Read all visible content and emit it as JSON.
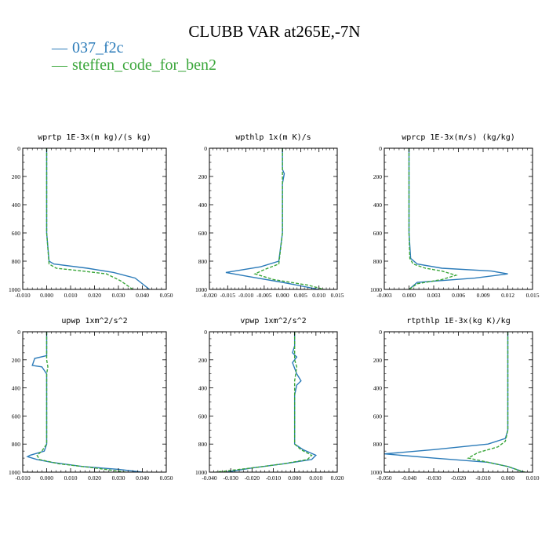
{
  "title": "CLUBB VAR at265E,-7N",
  "legend": [
    {
      "label": "037_f2c",
      "color": "#2b7bb9",
      "dash": "solid"
    },
    {
      "label": "steffen_code_for_ben2",
      "color": "#3aa63a",
      "dash": "dashed"
    }
  ],
  "chart_data": [
    {
      "type": "line",
      "title": "wprtp   1E-3x(m kg)/(s kg)",
      "xlim": [
        -0.01,
        0.05
      ],
      "xticks": [
        "-0.010",
        "0.000",
        "0.010",
        "0.020",
        "0.030",
        "0.040",
        "0.050"
      ],
      "ylim": [
        1000,
        0
      ],
      "yticks": [
        "0",
        "200",
        "400",
        "600",
        "800",
        "1000"
      ],
      "series": [
        {
          "name": "037_f2c",
          "x": [
            0.0,
            0.0,
            0.0,
            0.0,
            0.001,
            0.003,
            0.017,
            0.028,
            0.037,
            0.043
          ],
          "y": [
            0,
            200,
            400,
            600,
            800,
            820,
            850,
            880,
            920,
            1000
          ]
        },
        {
          "name": "steffen_code_for_ben2",
          "x": [
            0.0,
            0.0,
            0.0,
            0.0,
            0.001,
            0.004,
            0.015,
            0.025,
            0.031,
            0.036
          ],
          "y": [
            0,
            200,
            400,
            600,
            820,
            850,
            870,
            890,
            940,
            1000
          ]
        }
      ]
    },
    {
      "type": "line",
      "title": "wpthlp   1x(m K)/s",
      "xlim": [
        -0.02,
        0.015
      ],
      "xticks": [
        "-0.020",
        "-0.015",
        "-0.010",
        "-0.005",
        "0.000",
        "0.005",
        "0.010",
        "0.015"
      ],
      "ylim": [
        1000,
        0
      ],
      "yticks": [
        "0",
        "200",
        "400",
        "600",
        "800",
        "1000"
      ],
      "series": [
        {
          "name": "037_f2c",
          "x": [
            0.0,
            0.0,
            0.0,
            0.0005,
            0.0,
            0.0,
            0.0,
            -0.001,
            -0.006,
            -0.0155,
            -0.009,
            0.0,
            0.01
          ],
          "y": [
            0,
            100,
            150,
            180,
            250,
            300,
            600,
            800,
            840,
            880,
            910,
            950,
            1000
          ]
        },
        {
          "name": "steffen_code_for_ben2",
          "x": [
            0.0,
            0.0,
            0.0,
            0.0,
            0.0,
            0.0,
            -0.001,
            -0.005,
            -0.0075,
            -0.0025,
            0.007,
            0.0115
          ],
          "y": [
            0,
            100,
            200,
            250,
            300,
            600,
            820,
            860,
            890,
            930,
            970,
            1000
          ]
        }
      ]
    },
    {
      "type": "line",
      "title": "wprcp   1E-3x(m/s) (kg/kg)",
      "xlim": [
        -0.003,
        0.015
      ],
      "xticks": [
        "-0.003",
        "0.000",
        "0.003",
        "0.006",
        "0.009",
        "0.012",
        "0.015"
      ],
      "ylim": [
        1000,
        0
      ],
      "yticks": [
        "0",
        "200",
        "400",
        "600",
        "800",
        "1000"
      ],
      "series": [
        {
          "name": "037_f2c",
          "x": [
            0.0,
            0.0,
            0.0,
            0.0,
            0.0002,
            0.001,
            0.004,
            0.01,
            0.012,
            0.008,
            0.001,
            0.0
          ],
          "y": [
            0,
            200,
            400,
            600,
            780,
            820,
            850,
            870,
            890,
            920,
            950,
            1000
          ]
        },
        {
          "name": "steffen_code_for_ben2",
          "x": [
            0.0,
            0.0,
            0.0,
            0.0,
            0.0001,
            0.0005,
            0.002,
            0.004,
            0.0057,
            0.004,
            0.001,
            0.0
          ],
          "y": [
            0,
            200,
            400,
            600,
            780,
            820,
            850,
            870,
            900,
            930,
            960,
            1000
          ]
        }
      ]
    },
    {
      "type": "line",
      "title": "upwp   1xm^2/s^2",
      "xlim": [
        -0.01,
        0.05
      ],
      "xticks": [
        "-0.010",
        "0.000",
        "0.010",
        "0.020",
        "0.030",
        "0.040",
        "0.050"
      ],
      "ylim": [
        1000,
        0
      ],
      "yticks": [
        "0",
        "200",
        "400",
        "600",
        "800",
        "1000"
      ],
      "series": [
        {
          "name": "037_f2c",
          "x": [
            0.0,
            0.0,
            0.0,
            -0.005,
            -0.006,
            -0.002,
            0.0,
            0.0,
            0.0,
            0.0,
            -0.001,
            -0.007,
            -0.008,
            -0.004,
            0.002,
            0.015,
            0.03,
            0.04
          ],
          "y": [
            0,
            100,
            170,
            190,
            240,
            250,
            300,
            400,
            600,
            800,
            850,
            880,
            890,
            910,
            930,
            960,
            980,
            1000
          ]
        },
        {
          "name": "steffen_code_for_ben2",
          "x": [
            0.0,
            0.0,
            0.0,
            0.0005,
            0.0,
            0.0,
            0.0,
            0.0,
            -0.002,
            -0.004,
            -0.003,
            0.005,
            0.02,
            0.033
          ],
          "y": [
            0,
            100,
            200,
            250,
            300,
            400,
            600,
            800,
            850,
            880,
            910,
            940,
            970,
            1000
          ]
        }
      ]
    },
    {
      "type": "line",
      "title": "vpwp   1xm^2/s^2",
      "xlim": [
        -0.04,
        0.02
      ],
      "xticks": [
        "-0.040",
        "-0.030",
        "-0.020",
        "-0.010",
        "0.000",
        "0.010",
        "0.020"
      ],
      "ylim": [
        1000,
        0
      ],
      "yticks": [
        "0",
        "200",
        "400",
        "600",
        "800",
        "1000"
      ],
      "series": [
        {
          "name": "037_f2c",
          "x": [
            0.0,
            0.0,
            -0.001,
            0.001,
            -0.001,
            0.001,
            0.003,
            0.001,
            0.0,
            0.0,
            0.0,
            0.004,
            0.01,
            0.008,
            -0.005,
            -0.02,
            -0.032
          ],
          "y": [
            0,
            100,
            150,
            180,
            220,
            300,
            350,
            380,
            450,
            600,
            800,
            840,
            880,
            910,
            940,
            970,
            1000
          ]
        },
        {
          "name": "steffen_code_for_ben2",
          "x": [
            0.0,
            0.0,
            0.0,
            0.001,
            0.0,
            0.0,
            0.0,
            0.0,
            0.003,
            0.008,
            0.006,
            -0.005,
            -0.02,
            -0.037
          ],
          "y": [
            0,
            100,
            200,
            250,
            350,
            450,
            600,
            800,
            840,
            880,
            910,
            940,
            970,
            1000
          ]
        }
      ]
    },
    {
      "type": "line",
      "title": "rtpthlp   1E-3x(kg K)/kg",
      "xlim": [
        -0.05,
        0.01
      ],
      "xticks": [
        "-0.050",
        "-0.040",
        "-0.030",
        "-0.020",
        "-0.010",
        "0.000",
        "0.010"
      ],
      "ylim": [
        1000,
        0
      ],
      "yticks": [
        "0",
        "200",
        "400",
        "600",
        "800",
        "1000"
      ],
      "series": [
        {
          "name": "037_f2c",
          "x": [
            0.0,
            0.0,
            0.0,
            0.0,
            0.0,
            -0.001,
            -0.008,
            -0.03,
            -0.05,
            -0.03,
            -0.008,
            0.0,
            0.005,
            0.006
          ],
          "y": [
            0,
            200,
            400,
            600,
            700,
            760,
            800,
            840,
            870,
            900,
            930,
            960,
            990,
            1000
          ]
        },
        {
          "name": "steffen_code_for_ben2",
          "x": [
            0.0,
            0.0,
            0.0,
            0.0,
            0.0,
            -0.001,
            -0.004,
            -0.012,
            -0.016,
            -0.008,
            0.0,
            0.005,
            0.007
          ],
          "y": [
            0,
            200,
            400,
            600,
            700,
            780,
            820,
            860,
            900,
            930,
            960,
            990,
            1000
          ]
        }
      ]
    }
  ]
}
